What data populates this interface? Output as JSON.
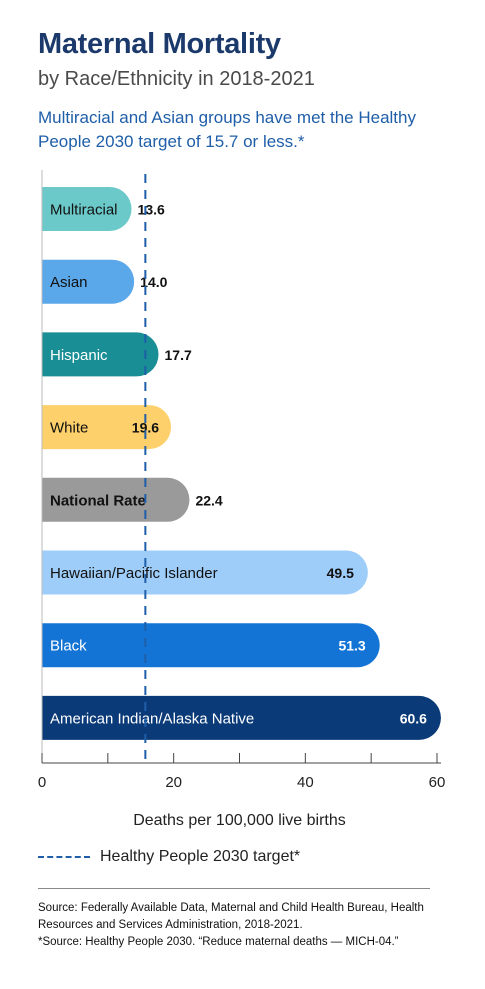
{
  "header": {
    "title": "Maternal Mortality",
    "subtitle": "by Race/Ethnicity in 2018-2021",
    "headline": "Multiracial and Asian groups have met the Healthy People 2030 target of 15.7 or less.*"
  },
  "chart_data": {
    "type": "bar",
    "orientation": "horizontal",
    "categories": [
      "Multiracial",
      "Asian",
      "Hispanic",
      "White",
      "National Rate",
      "Hawaiian/Pacific Islander",
      "Black",
      "American Indian/Alaska Native"
    ],
    "values": [
      13.6,
      14.0,
      17.7,
      19.6,
      22.4,
      49.5,
      51.3,
      60.6
    ],
    "value_labels": [
      "13.6",
      "14.0",
      "17.7",
      "19.6",
      "22.4",
      "49.5",
      "51.3",
      "60.6"
    ],
    "colors": [
      "#6cc9c9",
      "#5aa7ea",
      "#1a8e95",
      "#fdd06b",
      "#9a9a9a",
      "#9fcdfa",
      "#1374d6",
      "#0a3a78"
    ],
    "label_colors": [
      "#111111",
      "#111111",
      "#ffffff",
      "#111111",
      "#111111",
      "#111111",
      "#ffffff",
      "#ffffff"
    ],
    "bold_categories": [
      "National Rate"
    ],
    "target": 15.7,
    "target_color": "#1f5ea8",
    "xlabel": "Deaths per 100,000 live births",
    "xlim": [
      0,
      60
    ],
    "xticks": [
      "0",
      "20",
      "40",
      "60"
    ],
    "minor_tick_step": 10,
    "legend": {
      "label": "Healthy People 2030 target*",
      "placement": "bottom-left"
    }
  },
  "source": {
    "line1": "Source: Federally Available Data, Maternal and Child Health Bureau, Health Resources and Services Administration, 2018-2021.",
    "line2": "*Source: Healthy People 2030. “Reduce maternal deaths — MICH-04.”"
  }
}
